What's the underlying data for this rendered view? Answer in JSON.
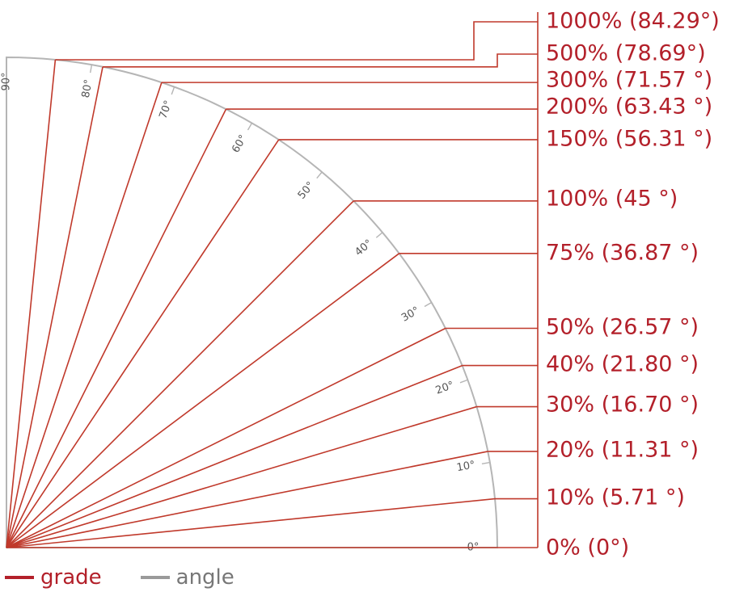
{
  "colors": {
    "grade": "#b3202a",
    "angle": "#9a9a9a"
  },
  "angles": [
    "0°",
    "10°",
    "20°",
    "30°",
    "40°",
    "50°",
    "60°",
    "70°",
    "80°",
    "90°"
  ],
  "grades": [
    {
      "pct": 0,
      "deg": 0,
      "label": "0% (0°)"
    },
    {
      "pct": 10,
      "deg": 5.71,
      "label": "10% (5.71 °)"
    },
    {
      "pct": 20,
      "deg": 11.31,
      "label": "20% (11.31 °)"
    },
    {
      "pct": 30,
      "deg": 16.7,
      "label": "30% (16.70 °)"
    },
    {
      "pct": 40,
      "deg": 21.8,
      "label": "40% (21.80 °)"
    },
    {
      "pct": 50,
      "deg": 26.57,
      "label": "50% (26.57 °)"
    },
    {
      "pct": 75,
      "deg": 36.87,
      "label": "75% (36.87 °)"
    },
    {
      "pct": 100,
      "deg": 45,
      "label": "100% (45 °)"
    },
    {
      "pct": 150,
      "deg": 56.31,
      "label": "150% (56.31 °)"
    },
    {
      "pct": 200,
      "deg": 63.43,
      "label": "200% (63.43 °)"
    },
    {
      "pct": 300,
      "deg": 71.57,
      "label": "300% (71.57 °)"
    },
    {
      "pct": 500,
      "deg": 78.69,
      "label": "500% (78.69°)"
    },
    {
      "pct": 1000,
      "deg": 84.29,
      "label": "1000% (84.29°)"
    }
  ],
  "legend": {
    "grade": "grade",
    "angle": "angle"
  }
}
